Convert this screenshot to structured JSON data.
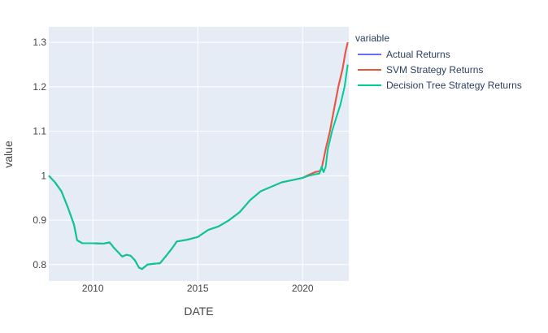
{
  "chart_data": {
    "type": "line",
    "xlabel": "DATE",
    "ylabel": "value",
    "xlim": [
      2007.9,
      2022.2
    ],
    "ylim": [
      0.763,
      1.335
    ],
    "x_ticks": [
      2010,
      2015,
      2020
    ],
    "y_ticks": [
      0.8,
      0.9,
      1,
      1.1,
      1.2,
      1.3
    ],
    "y_tick_labels": [
      "0.8",
      "0.9",
      "1",
      "1.1",
      "1.2",
      "1.3"
    ],
    "grid": true,
    "legend_title": "variable",
    "legend_position": "right",
    "series": [
      {
        "name": "Actual Returns",
        "color": "#636efa",
        "points": [
          [
            2007.9,
            1.0
          ],
          [
            2008.2,
            0.985
          ],
          [
            2008.5,
            0.965
          ],
          [
            2008.8,
            0.93
          ],
          [
            2009.1,
            0.89
          ],
          [
            2009.25,
            0.855
          ],
          [
            2009.5,
            0.848
          ],
          [
            2010.0,
            0.848
          ],
          [
            2010.5,
            0.847
          ],
          [
            2010.8,
            0.85
          ],
          [
            2011.0,
            0.838
          ],
          [
            2011.2,
            0.828
          ],
          [
            2011.4,
            0.818
          ],
          [
            2011.6,
            0.822
          ],
          [
            2011.8,
            0.82
          ],
          [
            2012.0,
            0.81
          ],
          [
            2012.2,
            0.793
          ],
          [
            2012.35,
            0.79
          ],
          [
            2012.6,
            0.8
          ],
          [
            2012.9,
            0.802
          ],
          [
            2013.2,
            0.803
          ],
          [
            2013.5,
            0.82
          ],
          [
            2013.8,
            0.838
          ],
          [
            2014.0,
            0.852
          ],
          [
            2014.5,
            0.856
          ],
          [
            2015.0,
            0.862
          ],
          [
            2015.5,
            0.878
          ],
          [
            2016.0,
            0.886
          ],
          [
            2016.5,
            0.9
          ],
          [
            2017.0,
            0.918
          ],
          [
            2017.5,
            0.945
          ],
          [
            2018.0,
            0.965
          ],
          [
            2018.5,
            0.975
          ],
          [
            2019.0,
            0.985
          ],
          [
            2019.5,
            0.99
          ],
          [
            2020.0,
            0.995
          ],
          [
            2020.3,
            1.002
          ],
          [
            2020.6,
            1.008
          ],
          [
            2020.8,
            1.01
          ],
          [
            2020.9,
            1.015
          ],
          [
            2021.1,
            1.06
          ],
          [
            2021.3,
            1.1
          ],
          [
            2021.5,
            1.15
          ],
          [
            2021.7,
            1.2
          ],
          [
            2021.9,
            1.24
          ],
          [
            2022.05,
            1.28
          ],
          [
            2022.15,
            1.3
          ]
        ]
      },
      {
        "name": "SVM Strategy Returns",
        "color": "#ef553b",
        "points": [
          [
            2007.9,
            1.0
          ],
          [
            2008.2,
            0.985
          ],
          [
            2008.5,
            0.965
          ],
          [
            2008.8,
            0.93
          ],
          [
            2009.1,
            0.89
          ],
          [
            2009.25,
            0.855
          ],
          [
            2009.5,
            0.848
          ],
          [
            2010.0,
            0.848
          ],
          [
            2010.5,
            0.847
          ],
          [
            2010.8,
            0.85
          ],
          [
            2011.0,
            0.838
          ],
          [
            2011.2,
            0.828
          ],
          [
            2011.4,
            0.818
          ],
          [
            2011.6,
            0.822
          ],
          [
            2011.8,
            0.82
          ],
          [
            2012.0,
            0.81
          ],
          [
            2012.2,
            0.793
          ],
          [
            2012.35,
            0.79
          ],
          [
            2012.6,
            0.8
          ],
          [
            2012.9,
            0.802
          ],
          [
            2013.2,
            0.803
          ],
          [
            2013.5,
            0.82
          ],
          [
            2013.8,
            0.838
          ],
          [
            2014.0,
            0.852
          ],
          [
            2014.5,
            0.856
          ],
          [
            2015.0,
            0.862
          ],
          [
            2015.5,
            0.878
          ],
          [
            2016.0,
            0.886
          ],
          [
            2016.5,
            0.9
          ],
          [
            2017.0,
            0.918
          ],
          [
            2017.5,
            0.945
          ],
          [
            2018.0,
            0.965
          ],
          [
            2018.5,
            0.975
          ],
          [
            2019.0,
            0.985
          ],
          [
            2019.5,
            0.99
          ],
          [
            2020.0,
            0.995
          ],
          [
            2020.3,
            1.002
          ],
          [
            2020.6,
            1.008
          ],
          [
            2020.8,
            1.01
          ],
          [
            2020.9,
            1.015
          ],
          [
            2021.1,
            1.06
          ],
          [
            2021.3,
            1.1
          ],
          [
            2021.5,
            1.15
          ],
          [
            2021.7,
            1.2
          ],
          [
            2021.9,
            1.24
          ],
          [
            2022.05,
            1.28
          ],
          [
            2022.15,
            1.3
          ]
        ]
      },
      {
        "name": "Decision Tree Strategy Returns",
        "color": "#00cc96",
        "points": [
          [
            2007.9,
            1.0
          ],
          [
            2008.2,
            0.985
          ],
          [
            2008.5,
            0.965
          ],
          [
            2008.8,
            0.93
          ],
          [
            2009.1,
            0.89
          ],
          [
            2009.25,
            0.855
          ],
          [
            2009.5,
            0.848
          ],
          [
            2010.0,
            0.848
          ],
          [
            2010.5,
            0.847
          ],
          [
            2010.8,
            0.85
          ],
          [
            2011.0,
            0.838
          ],
          [
            2011.2,
            0.828
          ],
          [
            2011.4,
            0.818
          ],
          [
            2011.6,
            0.822
          ],
          [
            2011.8,
            0.82
          ],
          [
            2012.0,
            0.81
          ],
          [
            2012.2,
            0.793
          ],
          [
            2012.35,
            0.79
          ],
          [
            2012.6,
            0.8
          ],
          [
            2012.9,
            0.802
          ],
          [
            2013.2,
            0.803
          ],
          [
            2013.5,
            0.82
          ],
          [
            2013.8,
            0.838
          ],
          [
            2014.0,
            0.852
          ],
          [
            2014.5,
            0.856
          ],
          [
            2015.0,
            0.862
          ],
          [
            2015.5,
            0.878
          ],
          [
            2016.0,
            0.886
          ],
          [
            2016.5,
            0.9
          ],
          [
            2017.0,
            0.918
          ],
          [
            2017.5,
            0.945
          ],
          [
            2018.0,
            0.965
          ],
          [
            2018.5,
            0.975
          ],
          [
            2019.0,
            0.985
          ],
          [
            2019.5,
            0.99
          ],
          [
            2020.0,
            0.995
          ],
          [
            2020.3,
            1.0
          ],
          [
            2020.6,
            1.003
          ],
          [
            2020.8,
            1.005
          ],
          [
            2020.9,
            1.02
          ],
          [
            2021.0,
            1.008
          ],
          [
            2021.1,
            1.02
          ],
          [
            2021.2,
            1.06
          ],
          [
            2021.4,
            1.1
          ],
          [
            2021.6,
            1.13
          ],
          [
            2021.8,
            1.16
          ],
          [
            2022.0,
            1.2
          ],
          [
            2022.15,
            1.25
          ]
        ]
      }
    ]
  }
}
